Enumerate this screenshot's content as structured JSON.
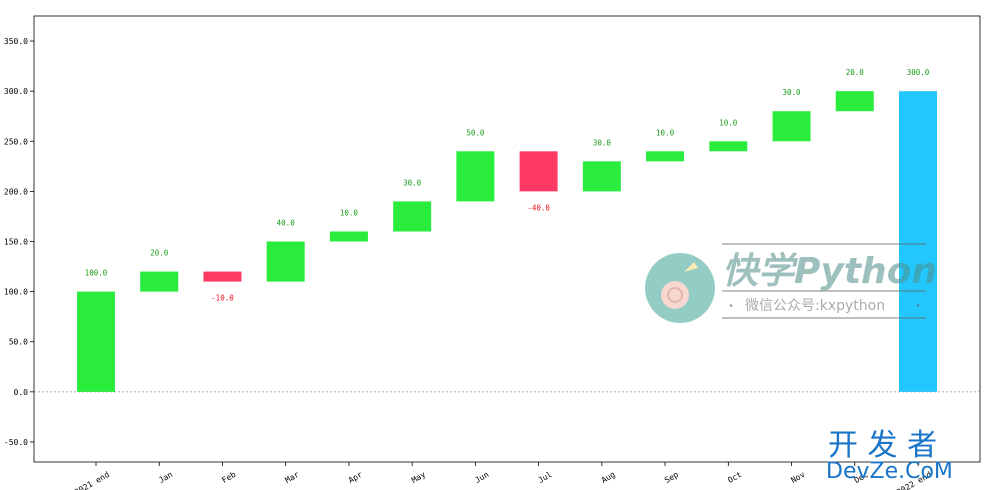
{
  "chart_data": {
    "type": "bar",
    "subtype": "waterfall",
    "title": "",
    "xlabel": "",
    "ylabel": "",
    "ylim": [
      -70,
      375
    ],
    "yticks": [
      -50,
      0,
      50,
      100,
      150,
      200,
      250,
      300,
      350
    ],
    "ytick_labels": [
      "-50.0",
      "0.0",
      "50.0",
      "100.0",
      "150.0",
      "200.0",
      "250.0",
      "300.0",
      "350.0"
    ],
    "categories": [
      "2021 end",
      "Jan",
      "Feb",
      "Mar",
      "Apr",
      "May",
      "Jun",
      "Jul",
      "Aug",
      "Sep",
      "Oct",
      "Nov",
      "Dec",
      "2022 end"
    ],
    "values": [
      100,
      20,
      -10,
      40,
      10,
      30,
      50,
      -40,
      30,
      10,
      10,
      30,
      20,
      300
    ],
    "bar_labels": [
      "100.0",
      "20.0",
      "-10.0",
      "40.0",
      "10.0",
      "30.0",
      "50.0",
      "-40.0",
      "30.0",
      "10.0",
      "10.0",
      "30.0",
      "20.0",
      "300.0"
    ],
    "baseline": 0,
    "grid": false,
    "legend": "none",
    "colors": {
      "increase": "#29ec3c",
      "decrease": "#fd3a63",
      "total": "#22c8fd",
      "increase_label": "#1a9a1a",
      "decrease_label": "#e8141e",
      "baseline": "#888888"
    }
  },
  "watermark": {
    "main": "快学Python",
    "sub": "微信公众号:kxpython",
    "corner_line1": "开 发 者",
    "corner_line2": "DevZe.CoM"
  }
}
